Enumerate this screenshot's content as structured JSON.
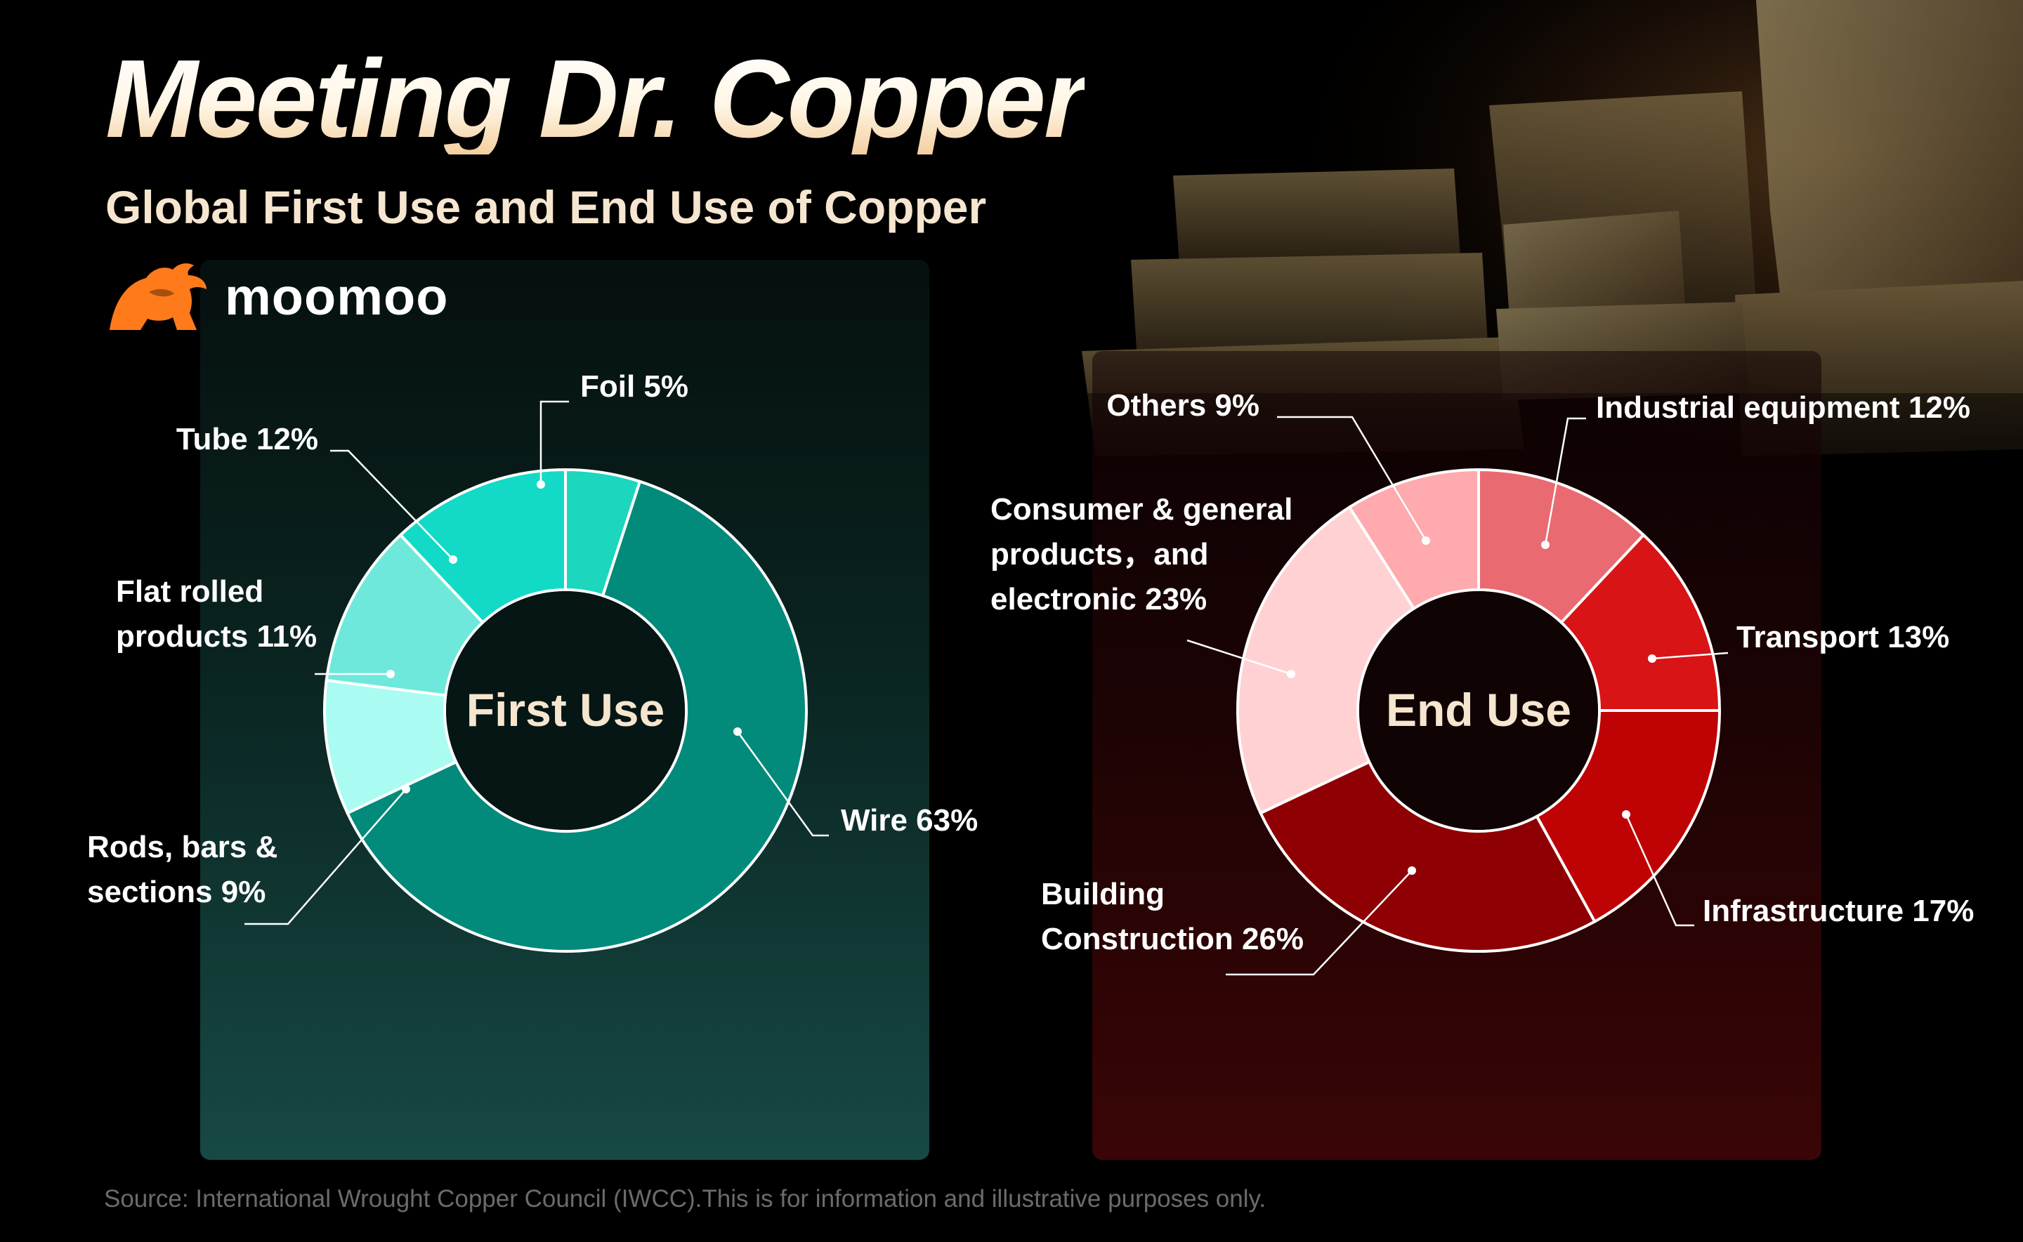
{
  "title": "Meeting Dr. Copper",
  "subtitle": "Global First Use and End Use of Copper",
  "brand": {
    "name": "moomoo",
    "logo_icon": "bull-logo-icon",
    "logo_color": "#ff7a1a"
  },
  "colors": {
    "title_gradient": [
      "#ffffff",
      "#f3cfa0"
    ],
    "first_use_card": "#0d2e2a",
    "end_use_card": "#2a0304"
  },
  "chart_data": [
    {
      "type": "pie",
      "title": "First Use",
      "categories": [
        "Foil",
        "Wire",
        "Rods, bars & sections",
        "Flat rolled products",
        "Tube"
      ],
      "values": [
        5,
        63,
        9,
        11,
        12
      ],
      "labels": [
        "Foil 5%",
        "Wire 63%",
        "Rods, bars &\nsections 9%",
        "Flat rolled\nproducts 11%",
        "Tube 12%"
      ],
      "colors": [
        "#1cd6bd",
        "#028a7b",
        "#aafcf2",
        "#6ee8da",
        "#13dac6"
      ]
    },
    {
      "type": "pie",
      "title": "End Use",
      "categories": [
        "Industrial equipment",
        "Transport",
        "Infrastructure",
        "Building Construction",
        "Consumer & general products, and electronic",
        "Others"
      ],
      "values": [
        12,
        13,
        17,
        26,
        23,
        9
      ],
      "labels": [
        "Industrial equipment 12%",
        "Transport 13%",
        "Infrastructure 17%",
        "Building\nConstruction 26%",
        "Consumer & general\nproducts，and\nelectronic 23%",
        "Others 9%"
      ],
      "colors": [
        "#e96a70",
        "#d81416",
        "#bf0204",
        "#8e0003",
        "#ffd1d3",
        "#feaaae"
      ]
    }
  ],
  "source": "Source: International Wrought Copper Council (IWCC).This is for information and illustrative purposes only."
}
